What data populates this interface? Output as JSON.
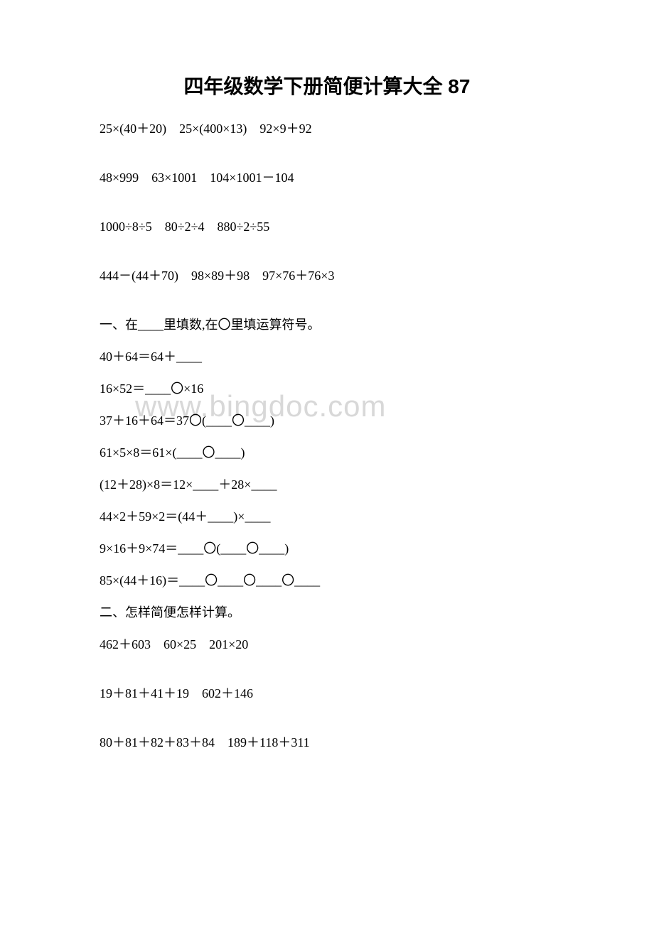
{
  "title": "四年级数学下册简便计算大全 87",
  "watermark": "www.bingdoc.com",
  "lines": {
    "l1": "25×(40＋20)　25×(400×13)　92×9＋92",
    "l2": "48×999　63×1001　104×1001－104",
    "l3": "1000÷8÷5　80÷2÷4　880÷2÷55",
    "l4": "444－(44＋70)　98×89＋98　97×76＋76×3",
    "l5": "一、在____里填数,在〇里填运算符号。",
    "l6": "40＋64＝64＋____",
    "l7": "16×52＝____〇×16",
    "l8": "37＋16＋64＝37〇(____〇____)",
    "l9": "61×5×8＝61×(____〇____)",
    "l10": "(12＋28)×8＝12×____＋28×____",
    "l11": "44×2＋59×2＝(44＋____)×____",
    "l12": "9×16＋9×74＝____〇(____〇____)",
    "l13": "85×(44＋16)＝____〇____〇____〇____",
    "l14": "二、怎样简便怎样计算。",
    "l15": "462＋603　60×25　201×20",
    "l16": "19＋81＋41＋19　602＋146",
    "l17": "80＋81＋82＋83＋84　189＋118＋311"
  },
  "colors": {
    "text": "#000000",
    "background": "#ffffff",
    "watermark": "#d8d8d8"
  },
  "typography": {
    "title_fontsize": 28,
    "body_fontsize": 18,
    "watermark_fontsize": 42,
    "title_font": "SimHei",
    "body_font": "SimSun"
  }
}
